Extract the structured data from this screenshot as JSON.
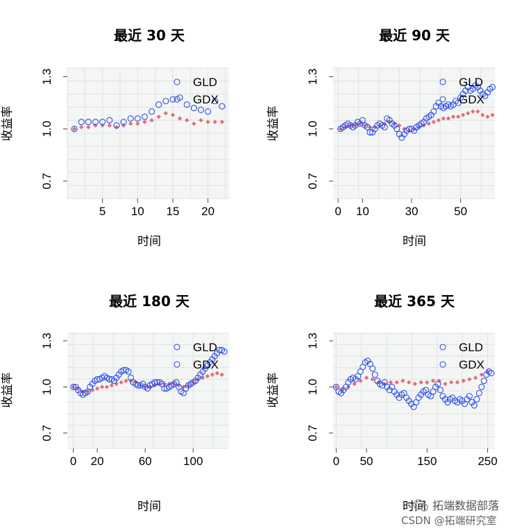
{
  "chart_data": [
    {
      "type": "scatter",
      "title": "最近 30 天",
      "xlabel": "时间",
      "ylabel": "收益率",
      "xticks": [
        5,
        10,
        15,
        20
      ],
      "yticks": [
        0.7,
        1.0,
        1.3
      ],
      "xlim": [
        0,
        23
      ],
      "ylim": [
        0.6,
        1.35
      ],
      "grid": true,
      "legend": "top-right",
      "series": [
        {
          "name": "GLD",
          "color": "#df707a",
          "marker": "filled-diamond",
          "x": [
            1,
            2,
            3,
            4,
            5,
            6,
            7,
            8,
            9,
            10,
            11,
            12,
            13,
            14,
            15,
            16,
            17,
            18,
            19,
            20,
            21,
            22
          ],
          "y": [
            1.0,
            1.01,
            1.01,
            1.02,
            1.02,
            1.02,
            1.01,
            1.02,
            1.03,
            1.03,
            1.04,
            1.05,
            1.07,
            1.09,
            1.08,
            1.06,
            1.05,
            1.03,
            1.05,
            1.04,
            1.04,
            1.04
          ]
        },
        {
          "name": "GDX",
          "color": "#2c4ee6",
          "marker": "open-circle",
          "x": [
            1,
            2,
            3,
            4,
            5,
            6,
            7,
            8,
            9,
            10,
            11,
            12,
            13,
            14,
            15,
            16,
            17,
            18,
            19,
            20,
            21,
            22
          ],
          "y": [
            1.0,
            1.04,
            1.04,
            1.04,
            1.04,
            1.05,
            1.02,
            1.04,
            1.06,
            1.06,
            1.07,
            1.1,
            1.14,
            1.16,
            1.17,
            1.18,
            1.14,
            1.12,
            1.11,
            1.1,
            1.16,
            1.13
          ]
        }
      ]
    },
    {
      "type": "scatter",
      "title": "最近 90 天",
      "xlabel": "时间",
      "ylabel": "收益率",
      "xticks": [
        0,
        10,
        30,
        50
      ],
      "yticks": [
        0.7,
        1.0,
        1.3
      ],
      "xlim": [
        -2,
        64
      ],
      "ylim": [
        0.6,
        1.35
      ],
      "grid": true,
      "legend": "top-right",
      "series": [
        {
          "name": "GLD",
          "color": "#df707a",
          "marker": "filled-diamond",
          "x": [
            1,
            3,
            5,
            7,
            9,
            11,
            13,
            15,
            17,
            19,
            21,
            23,
            25,
            27,
            29,
            31,
            33,
            35,
            37,
            39,
            41,
            43,
            45,
            47,
            49,
            51,
            53,
            55,
            57,
            59,
            61,
            63
          ],
          "y": [
            1.0,
            1.01,
            1.02,
            1.02,
            1.03,
            1.02,
            1.01,
            1.01,
            1.02,
            1.03,
            1.04,
            1.03,
            1.02,
            1.0,
            0.99,
            1.0,
            1.01,
            1.02,
            1.03,
            1.04,
            1.05,
            1.06,
            1.06,
            1.07,
            1.07,
            1.08,
            1.09,
            1.1,
            1.1,
            1.08,
            1.07,
            1.08
          ]
        },
        {
          "name": "GDX",
          "color": "#2c4ee6",
          "marker": "open-circle",
          "x": [
            1,
            2,
            3,
            4,
            5,
            6,
            7,
            8,
            9,
            10,
            11,
            12,
            13,
            14,
            15,
            16,
            17,
            18,
            19,
            20,
            21,
            22,
            23,
            24,
            25,
            26,
            27,
            28,
            29,
            30,
            31,
            32,
            33,
            34,
            35,
            36,
            37,
            38,
            39,
            40,
            41,
            42,
            43,
            44,
            45,
            46,
            47,
            48,
            49,
            50,
            51,
            52,
            53,
            54,
            55,
            56,
            57,
            58,
            59,
            60,
            61,
            62,
            63
          ],
          "y": [
            1.0,
            1.01,
            1.02,
            1.03,
            1.02,
            1.01,
            1.02,
            1.04,
            1.03,
            1.05,
            1.02,
            1.01,
            0.98,
            0.98,
            1.0,
            1.02,
            1.03,
            1.02,
            1.01,
            1.06,
            1.05,
            1.03,
            1.02,
            1.0,
            0.97,
            0.95,
            0.97,
            0.99,
            1.0,
            1.0,
            0.99,
            1.01,
            1.02,
            1.03,
            1.04,
            1.06,
            1.07,
            1.08,
            1.1,
            1.13,
            1.15,
            1.13,
            1.12,
            1.13,
            1.14,
            1.13,
            1.14,
            1.16,
            1.15,
            1.18,
            1.2,
            1.22,
            1.24,
            1.22,
            1.23,
            1.25,
            1.24,
            1.22,
            1.2,
            1.19,
            1.21,
            1.23,
            1.24
          ]
        }
      ]
    },
    {
      "type": "scatter",
      "title": "最近 180 天",
      "xlabel": "时间",
      "ylabel": "收益率",
      "xticks": [
        0,
        20,
        60,
        100
      ],
      "yticks": [
        0.7,
        1.0,
        1.3
      ],
      "xlim": [
        -5,
        130
      ],
      "ylim": [
        0.6,
        1.35
      ],
      "grid": true,
      "legend": "top-right",
      "series": [
        {
          "name": "GLD",
          "color": "#df707a",
          "marker": "filled-diamond",
          "x": [
            0,
            4,
            8,
            12,
            16,
            20,
            24,
            28,
            32,
            36,
            40,
            44,
            48,
            52,
            56,
            60,
            64,
            68,
            72,
            76,
            80,
            84,
            88,
            92,
            96,
            100,
            104,
            108,
            112,
            116,
            120,
            124
          ],
          "y": [
            1.0,
            0.99,
            0.97,
            0.97,
            0.98,
            0.99,
            1.0,
            1.0,
            1.01,
            1.02,
            1.03,
            1.04,
            1.04,
            1.03,
            1.01,
            1.0,
            1.0,
            1.01,
            1.02,
            1.02,
            1.02,
            1.02,
            1.01,
            1.0,
            1.01,
            1.03,
            1.05,
            1.06,
            1.07,
            1.08,
            1.09,
            1.08
          ]
        },
        {
          "name": "GDX",
          "color": "#2c4ee6",
          "marker": "open-circle",
          "x": [
            0,
            2,
            4,
            6,
            8,
            10,
            12,
            14,
            16,
            18,
            20,
            22,
            24,
            26,
            28,
            30,
            32,
            34,
            36,
            38,
            40,
            42,
            44,
            46,
            48,
            50,
            52,
            54,
            56,
            58,
            60,
            62,
            64,
            66,
            68,
            70,
            72,
            74,
            76,
            78,
            80,
            82,
            84,
            86,
            88,
            90,
            92,
            94,
            96,
            98,
            100,
            102,
            104,
            106,
            108,
            110,
            112,
            114,
            116,
            118,
            120,
            122,
            124,
            126
          ],
          "y": [
            1.0,
            1.0,
            0.98,
            0.96,
            0.95,
            0.96,
            0.97,
            1.0,
            1.02,
            1.04,
            1.05,
            1.05,
            1.06,
            1.07,
            1.06,
            1.05,
            1.05,
            1.04,
            1.06,
            1.08,
            1.1,
            1.11,
            1.11,
            1.1,
            1.06,
            1.03,
            1.02,
            1.01,
            1.01,
            1.02,
            1.0,
            0.99,
            1.01,
            1.02,
            1.03,
            1.03,
            1.03,
            1.02,
            0.99,
            0.99,
            1.0,
            1.01,
            1.02,
            1.03,
            1.0,
            0.97,
            0.96,
            0.99,
            1.01,
            1.02,
            1.03,
            1.04,
            1.06,
            1.08,
            1.1,
            1.12,
            1.14,
            1.16,
            1.18,
            1.2,
            1.22,
            1.24,
            1.24,
            1.23
          ]
        }
      ]
    },
    {
      "type": "scatter",
      "title": "最近 365 天",
      "xlabel": "时间",
      "ylabel": "收益率",
      "xticks": [
        0,
        50,
        150,
        250
      ],
      "yticks": [
        0.7,
        1.0,
        1.3
      ],
      "xlim": [
        -5,
        262
      ],
      "ylim": [
        0.6,
        1.35
      ],
      "grid": true,
      "legend": "top-right",
      "series": [
        {
          "name": "GLD",
          "color": "#df707a",
          "marker": "filled-diamond",
          "x": [
            0,
            10,
            20,
            30,
            40,
            50,
            60,
            70,
            80,
            90,
            100,
            110,
            120,
            130,
            140,
            150,
            160,
            170,
            180,
            190,
            200,
            210,
            220,
            230,
            240,
            250
          ],
          "y": [
            1.0,
            0.98,
            1.0,
            1.02,
            1.04,
            1.06,
            1.05,
            1.03,
            1.02,
            1.03,
            1.03,
            1.04,
            1.03,
            1.02,
            1.03,
            1.03,
            1.04,
            1.04,
            1.02,
            1.03,
            1.03,
            1.04,
            1.05,
            1.06,
            1.08,
            1.1
          ]
        },
        {
          "name": "GDX",
          "color": "#2c4ee6",
          "marker": "open-circle",
          "x": [
            0,
            4,
            8,
            12,
            16,
            20,
            24,
            28,
            32,
            36,
            40,
            44,
            48,
            52,
            56,
            60,
            64,
            68,
            72,
            76,
            80,
            84,
            88,
            92,
            96,
            100,
            104,
            108,
            112,
            116,
            120,
            124,
            128,
            132,
            136,
            140,
            144,
            148,
            152,
            156,
            160,
            164,
            168,
            172,
            176,
            180,
            184,
            188,
            192,
            196,
            200,
            204,
            208,
            212,
            216,
            220,
            224,
            228,
            232,
            236,
            240,
            244,
            248,
            252,
            256
          ],
          "y": [
            1.0,
            0.97,
            0.96,
            0.98,
            1.0,
            1.03,
            1.05,
            1.06,
            1.05,
            1.07,
            1.1,
            1.13,
            1.16,
            1.17,
            1.15,
            1.12,
            1.08,
            1.04,
            1.02,
            1.01,
            1.03,
            1.0,
            0.98,
            1.0,
            0.97,
            0.95,
            0.93,
            0.95,
            0.96,
            0.93,
            0.91,
            0.89,
            0.87,
            0.9,
            0.93,
            0.95,
            0.97,
            0.98,
            0.95,
            0.94,
            0.97,
            1.0,
            1.02,
            0.98,
            0.94,
            0.92,
            0.9,
            0.92,
            0.93,
            0.91,
            0.9,
            0.92,
            0.91,
            0.89,
            0.92,
            0.94,
            0.9,
            0.88,
            0.92,
            0.96,
            1.0,
            1.04,
            1.08,
            1.1,
            1.09
          ]
        }
      ]
    }
  ],
  "watermark": {
    "brand": "拓端数据部落",
    "source": "CSDN @拓端研究室"
  }
}
